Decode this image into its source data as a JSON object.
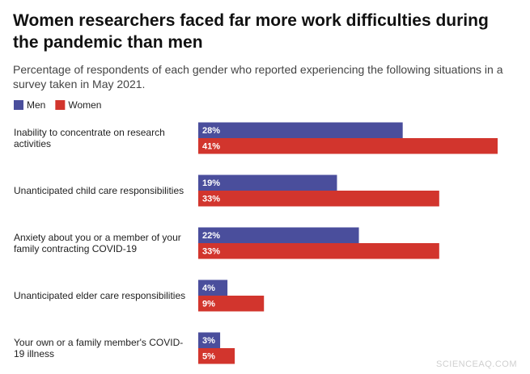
{
  "chart_data": {
    "type": "bar",
    "orientation": "horizontal",
    "title": "Women researchers faced far more work difficulties during the pandemic than men",
    "subtitle": "Percentage of respondents of each gender who reported experiencing the following situations in a survey taken in May 2021.",
    "categories": [
      "Inability to concentrate on research activities",
      "Unanticipated child care responsibilities",
      "Anxiety about you or a member of your family contracting COVID-19",
      "Unanticipated elder care responsibilities",
      "Your own or a family member's COVID-19 illness"
    ],
    "series": [
      {
        "name": "Men",
        "color": "#4a4e9c",
        "values": [
          28,
          19,
          22,
          4,
          3
        ],
        "value_labels": [
          "28%",
          "19%",
          "22%",
          "4%",
          "3%"
        ]
      },
      {
        "name": "Women",
        "color": "#d2352d",
        "values": [
          41,
          33,
          33,
          9,
          5
        ],
        "value_labels": [
          "41%",
          "33%",
          "33%",
          "9%",
          "5%"
        ]
      }
    ],
    "watermark": "SCIENCEAQ.COM"
  }
}
